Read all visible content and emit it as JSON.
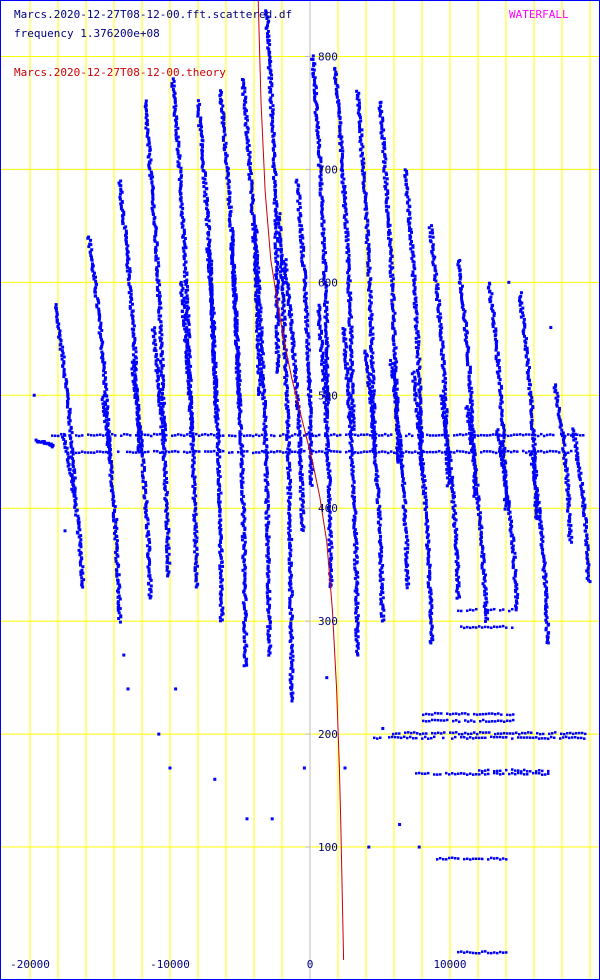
{
  "header": {
    "source_file": "Marcs.2020-12-27T08-12-00.fft.scattered.df",
    "frequency_label": "frequency 1.376200e+08",
    "theory_label": "Marcs.2020-12-27T08-12-00.theory",
    "mode_label": "WATERFALL"
  },
  "colors": {
    "background": "#ffffff",
    "frame": "#0000ff",
    "grid": "#ffff00",
    "axis": "#bdbdbd",
    "scatter": "#0000ff",
    "theory": "#cc0000",
    "mode_label": "#ff00ff",
    "text": "#000080"
  },
  "chart_data": {
    "type": "scatter",
    "xlim": [
      -20000,
      20000
    ],
    "ylim": [
      0,
      850
    ],
    "x_ticks": [
      -20000,
      -10000,
      0,
      10000
    ],
    "x_tick_labels": [
      "-20000",
      "-10000",
      "0",
      "10000"
    ],
    "y_ticks": [
      100,
      200,
      300,
      400,
      500,
      600,
      700,
      800
    ],
    "y_tick_labels": [
      "100",
      "200",
      "300",
      "400",
      "500",
      "600",
      "700",
      "800"
    ],
    "grid": true,
    "x_grid_step": 2000,
    "y_grid_step": 100,
    "series": [
      {
        "name": "Marcs.2020-12-27T08-12-00.fft.scattered.df",
        "style": "points",
        "tracks": [
          {
            "x": [
              -19600,
              -18400
            ],
            "y": [
              460,
              455
            ]
          },
          {
            "x": [
              -18200,
              -16800
            ],
            "y": [
              580,
              410
            ]
          },
          {
            "x": [
              -17600,
              -16200
            ],
            "y": [
              465,
              330
            ]
          },
          {
            "x": [
              -15800,
              -14300
            ],
            "y": [
              640,
              440
            ]
          },
          {
            "x": [
              -14800,
              -13600
            ],
            "y": [
              500,
              300
            ]
          },
          {
            "x": [
              -13600,
              -12200
            ],
            "y": [
              690,
              450
            ]
          },
          {
            "x": [
              -12700,
              -11400
            ],
            "y": [
              530,
              320
            ]
          },
          {
            "x": [
              -11800,
              -10400
            ],
            "y": [
              760,
              460
            ]
          },
          {
            "x": [
              -11200,
              -10100
            ],
            "y": [
              560,
              340
            ]
          },
          {
            "x": [
              -9800,
              -8500
            ],
            "y": [
              780,
              470
            ]
          },
          {
            "x": [
              -9200,
              -8100
            ],
            "y": [
              600,
              330
            ]
          },
          {
            "x": [
              -8000,
              -6700
            ],
            "y": [
              760,
              480
            ]
          },
          {
            "x": [
              -7300,
              -6300
            ],
            "y": [
              630,
              300
            ]
          },
          {
            "x": [
              -6400,
              -5100
            ],
            "y": [
              770,
              490
            ]
          },
          {
            "x": [
              -5600,
              -4600
            ],
            "y": [
              640,
              260
            ]
          },
          {
            "x": [
              -4800,
              -3600
            ],
            "y": [
              780,
              500
            ]
          },
          {
            "x": [
              -3900,
              -2900
            ],
            "y": [
              650,
              270
            ]
          },
          {
            "x": [
              -3100,
              -2300
            ],
            "y": [
              840,
              520
            ]
          },
          {
            "x": [
              -2200,
              -1300
            ],
            "y": [
              660,
              230
            ]
          },
          {
            "x": [
              -1800,
              -500
            ],
            "y": [
              620,
              380
            ]
          },
          {
            "x": [
              -900,
              100
            ],
            "y": [
              690,
              420
            ]
          },
          {
            "x": [
              200,
              1300
            ],
            "y": [
              800,
              480
            ]
          },
          {
            "x": [
              600,
              1500
            ],
            "y": [
              580,
              330
            ]
          },
          {
            "x": [
              1800,
              3100
            ],
            "y": [
              790,
              470
            ]
          },
          {
            "x": [
              2400,
              3400
            ],
            "y": [
              560,
              270
            ]
          },
          {
            "x": [
              3400,
              4600
            ],
            "y": [
              770,
              450
            ]
          },
          {
            "x": [
              4000,
              5200
            ],
            "y": [
              540,
              300
            ]
          },
          {
            "x": [
              5000,
              6300
            ],
            "y": [
              760,
              440
            ]
          },
          {
            "x": [
              5800,
              7000
            ],
            "y": [
              530,
              330
            ]
          },
          {
            "x": [
              6800,
              8000
            ],
            "y": [
              700,
              430
            ]
          },
          {
            "x": [
              7400,
              8700
            ],
            "y": [
              520,
              280
            ]
          },
          {
            "x": [
              8600,
              9900
            ],
            "y": [
              650,
              420
            ]
          },
          {
            "x": [
              9400,
              10600
            ],
            "y": [
              500,
              320
            ]
          },
          {
            "x": [
              10600,
              11800
            ],
            "y": [
              620,
              410
            ]
          },
          {
            "x": [
              11200,
              12600
            ],
            "y": [
              490,
              300
            ]
          },
          {
            "x": [
              12800,
              14000
            ],
            "y": [
              600,
              400
            ]
          },
          {
            "x": [
              13400,
              14800
            ],
            "y": [
              470,
              310
            ]
          },
          {
            "x": [
              15000,
              16200
            ],
            "y": [
              590,
              390
            ]
          },
          {
            "x": [
              15800,
              17000
            ],
            "y": [
              450,
              280
            ]
          },
          {
            "x": [
              17500,
              18600
            ],
            "y": [
              510,
              370
            ]
          },
          {
            "x": [
              18800,
              19900
            ],
            "y": [
              470,
              335
            ]
          }
        ],
        "bands": [
          {
            "x": [
              -18500,
              19600
            ],
            "y": 465
          },
          {
            "x": [
              -17000,
              19000
            ],
            "y": 450
          },
          {
            "x": [
              4500,
              19600
            ],
            "y": 197
          },
          {
            "x": [
              5000,
              19600
            ],
            "y": 201
          },
          {
            "x": [
              8000,
              14500
            ],
            "y": 212
          },
          {
            "x": [
              8000,
              14500
            ],
            "y": 218
          },
          {
            "x": [
              7500,
              17000
            ],
            "y": 165
          },
          {
            "x": [
              12000,
              17000
            ],
            "y": 168
          },
          {
            "x": [
              10500,
              14500
            ],
            "y": 310
          },
          {
            "x": [
              10500,
              14500
            ],
            "y": 295
          },
          {
            "x": [
              9000,
              14000
            ],
            "y": 90
          },
          {
            "x": [
              10500,
              14000
            ],
            "y": 7
          }
        ],
        "scatter": [
          {
            "x": -19700,
            "y": 500
          },
          {
            "x": -17500,
            "y": 380
          },
          {
            "x": -13800,
            "y": 390
          },
          {
            "x": -13300,
            "y": 270
          },
          {
            "x": -13000,
            "y": 240
          },
          {
            "x": -10800,
            "y": 200
          },
          {
            "x": -10000,
            "y": 170
          },
          {
            "x": -9600,
            "y": 240
          },
          {
            "x": -6800,
            "y": 160
          },
          {
            "x": -4500,
            "y": 125
          },
          {
            "x": -2700,
            "y": 125
          },
          {
            "x": -400,
            "y": 170
          },
          {
            "x": 1200,
            "y": 250
          },
          {
            "x": 2500,
            "y": 170
          },
          {
            "x": 4200,
            "y": 100
          },
          {
            "x": 5200,
            "y": 205
          },
          {
            "x": 6400,
            "y": 120
          },
          {
            "x": 7800,
            "y": 100
          },
          {
            "x": 14200,
            "y": 600
          },
          {
            "x": 17200,
            "y": 560
          }
        ]
      },
      {
        "name": "Marcs.2020-12-27T08-12-00.theory",
        "style": "line",
        "x": [
          -3700,
          -3500,
          -3200,
          -2800,
          -2300,
          -1800,
          -1300,
          -800,
          -300,
          200,
          700,
          1200,
          1600,
          1900,
          2100,
          2200,
          2300,
          2400
        ],
        "y": [
          850,
          760,
          680,
          620,
          580,
          545,
          515,
          490,
          465,
          440,
          410,
          370,
          310,
          240,
          170,
          120,
          60,
          0
        ]
      }
    ]
  }
}
